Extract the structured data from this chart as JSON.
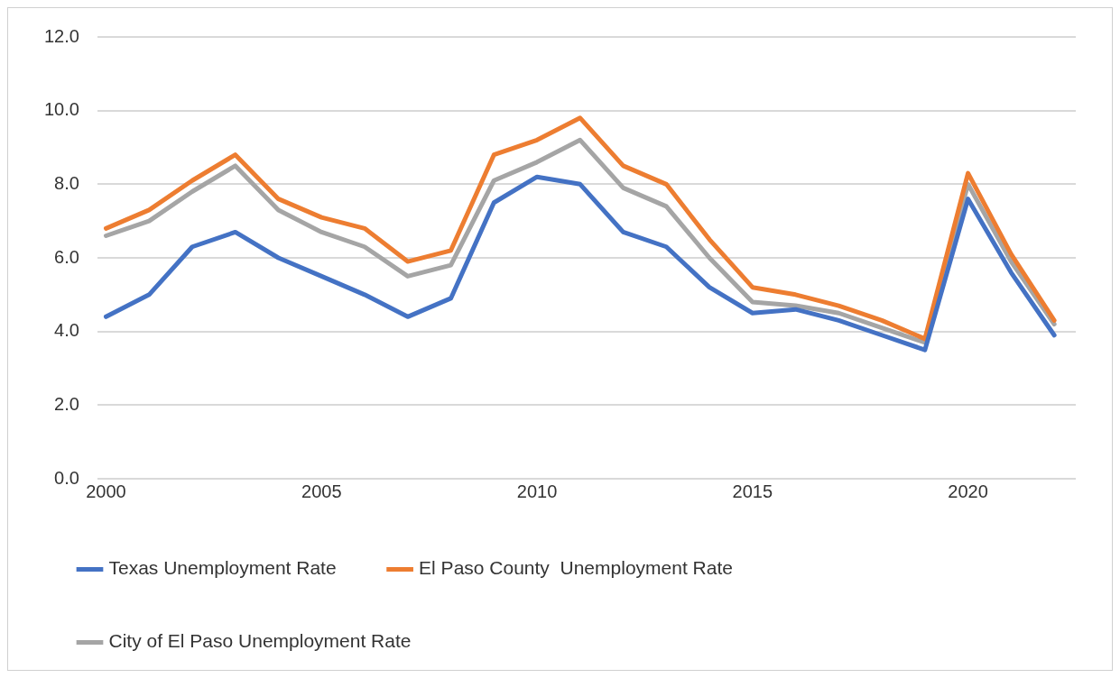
{
  "chart_data": {
    "type": "line",
    "x": [
      2000,
      2001,
      2002,
      2003,
      2004,
      2005,
      2006,
      2007,
      2008,
      2009,
      2010,
      2011,
      2012,
      2013,
      2014,
      2015,
      2016,
      2017,
      2018,
      2019,
      2020,
      2021,
      2022
    ],
    "xlim": [
      1999.8,
      2022.5
    ],
    "xticks": [
      2000,
      2005,
      2010,
      2015,
      2020
    ],
    "ylim": [
      0,
      12
    ],
    "yticks": [
      {
        "value": 0,
        "label": "0.0"
      },
      {
        "value": 2,
        "label": "2.0"
      },
      {
        "value": 4,
        "label": "4.0"
      },
      {
        "value": 6,
        "label": "6.0"
      },
      {
        "value": 8,
        "label": "8.0"
      },
      {
        "value": 10,
        "label": "10.0"
      },
      {
        "value": 12,
        "label": "12.0"
      }
    ],
    "grid": "y",
    "legend": "bottom",
    "marker": "none",
    "line_style": "solid",
    "series": [
      {
        "name": "Texas Unemployment Rate",
        "color": "#4472c4",
        "values": [
          4.4,
          5.0,
          6.3,
          6.7,
          6.0,
          5.5,
          5.0,
          4.4,
          4.9,
          7.5,
          8.2,
          8.0,
          6.7,
          6.3,
          5.2,
          4.5,
          4.6,
          4.3,
          3.9,
          3.5,
          7.6,
          5.6,
          3.9
        ]
      },
      {
        "name": "El Paso County  Unemployment Rate",
        "color": "#ed7d31",
        "values": [
          6.8,
          7.3,
          8.1,
          8.8,
          7.6,
          7.1,
          6.8,
          5.9,
          6.2,
          8.8,
          9.2,
          9.8,
          8.5,
          8.0,
          6.5,
          5.2,
          5.0,
          4.7,
          4.3,
          3.8,
          8.3,
          6.1,
          4.3
        ]
      },
      {
        "name": "City of El Paso Unemployment Rate",
        "color": "#a5a5a5",
        "values": [
          6.6,
          7.0,
          7.8,
          8.5,
          7.3,
          6.7,
          6.3,
          5.5,
          5.8,
          8.1,
          8.6,
          9.2,
          7.9,
          7.4,
          6.0,
          4.8,
          4.7,
          4.5,
          4.1,
          3.7,
          8.0,
          5.9,
          4.2
        ]
      }
    ]
  }
}
